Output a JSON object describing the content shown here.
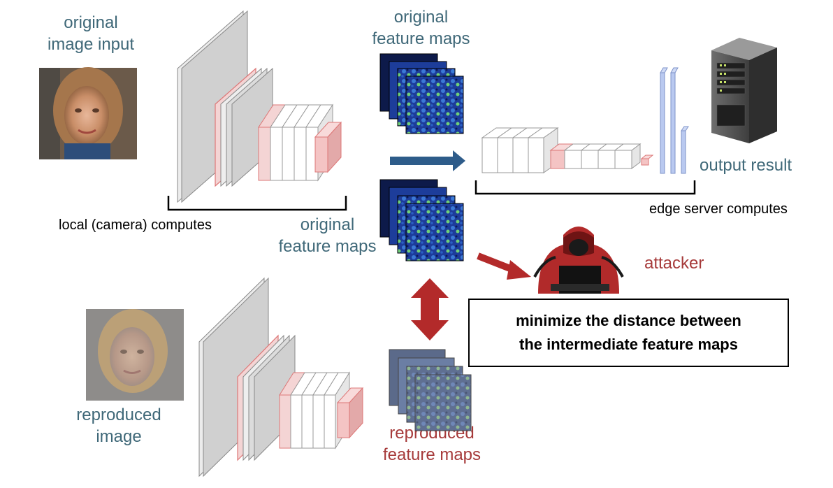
{
  "labels": {
    "original_input": [
      "original",
      "image input"
    ],
    "original_maps_top": [
      "original",
      "feature maps"
    ],
    "original_maps_mid": [
      "original",
      "feature maps"
    ],
    "local_computes": "local (camera) computes",
    "edge_computes": "edge server computes",
    "output_result": "output result",
    "attacker": "attacker",
    "reproduced_image": [
      "reproduced",
      "image"
    ],
    "reproduced_maps": [
      "reproduced",
      "feature maps"
    ]
  },
  "goal": {
    "line1": "minimize the distance between",
    "line2": "the intermediate feature maps"
  },
  "icons": {
    "server": "server-rack-icon",
    "attacker": "hooded-hacker-icon",
    "original_photo": "face-photo-original",
    "reproduced_photo": "face-photo-reproduced"
  },
  "colors": {
    "teal_text": "#3f6878",
    "red_text": "#a63a3a",
    "arrow_blue": "#2e5c8a",
    "arrow_red": "#b32a2a",
    "layer_red": "#e9a3a3",
    "layer_blue": "#b9c9f0"
  }
}
